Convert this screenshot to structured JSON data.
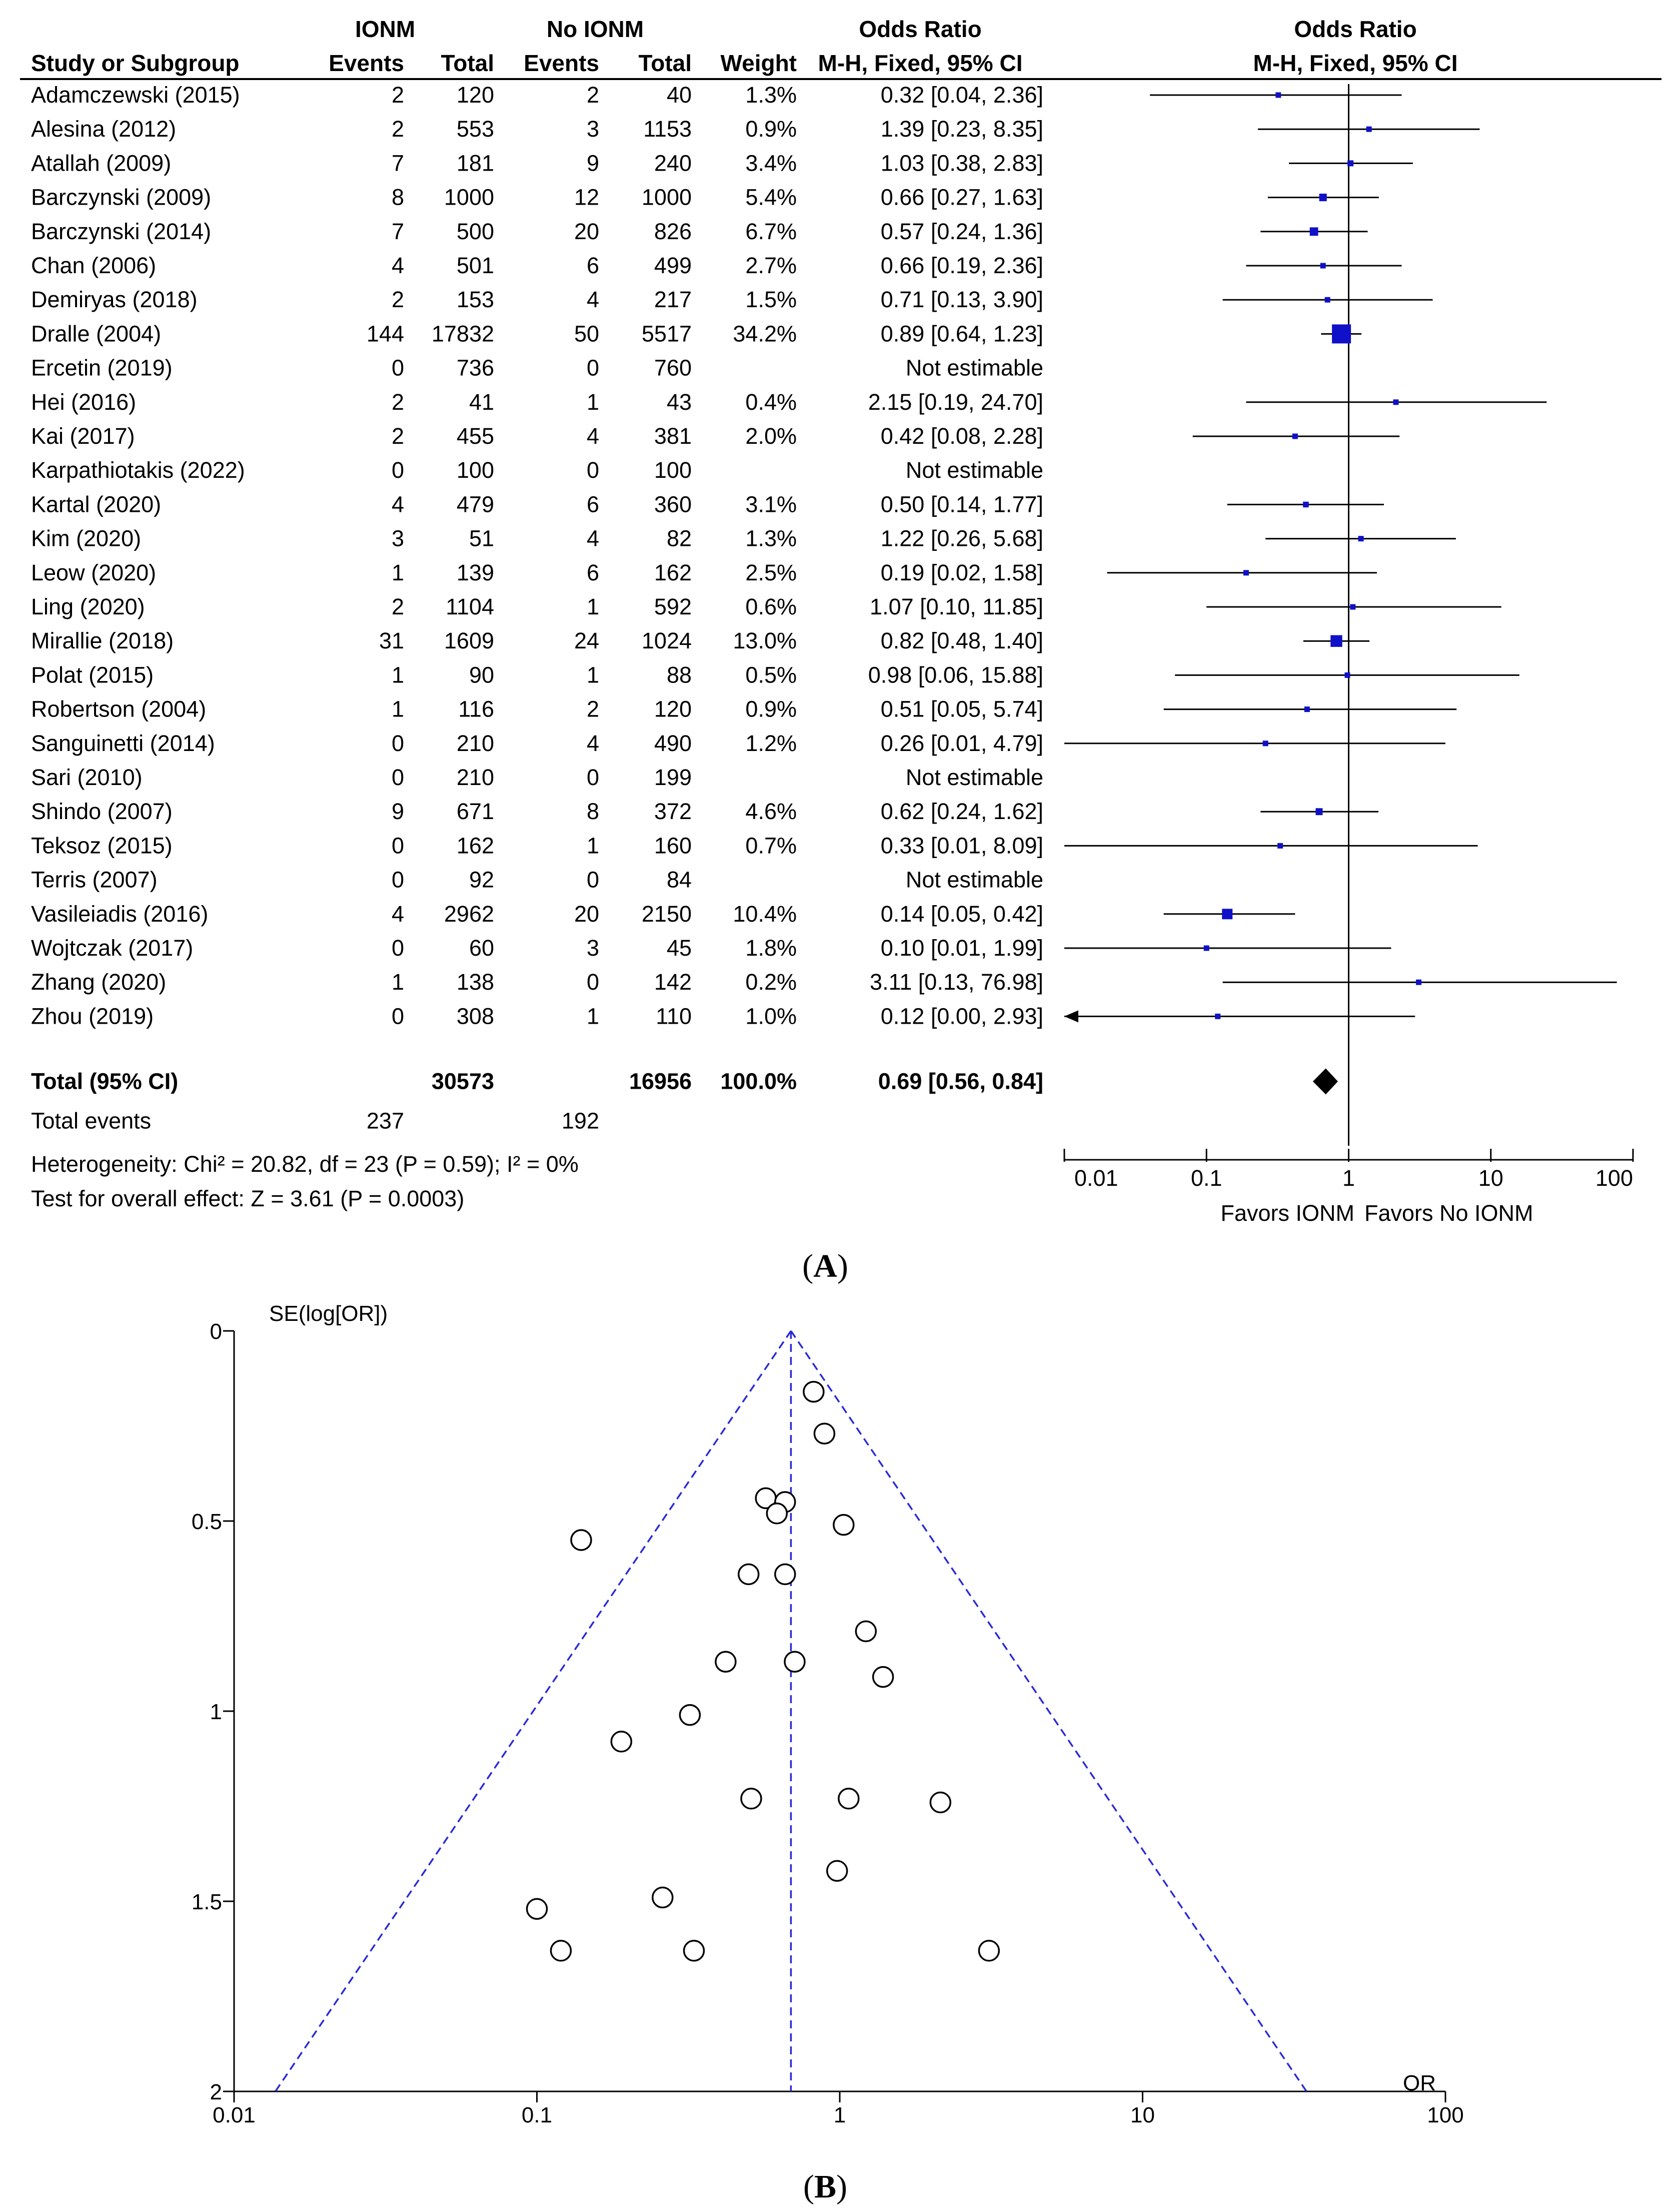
{
  "chart_data": [
    {
      "type": "forest",
      "panel_label": "A",
      "group_headers": {
        "ionm": "IONM",
        "no_ionm": "No IONM",
        "or_text": "Odds Ratio",
        "or_plot": "Odds Ratio"
      },
      "column_headers": {
        "study": "Study or Subgroup",
        "events1": "Events",
        "total1": "Total",
        "events2": "Events",
        "total2": "Total",
        "weight": "Weight",
        "method_text": "M-H, Fixed, 95% CI",
        "method_plot": "M-H, Fixed, 95% CI"
      },
      "studies": [
        {
          "name": "Adamczewski (2015)",
          "e1": "2",
          "t1": "120",
          "e2": "2",
          "t2": "40",
          "weight": "1.3%",
          "ci": "0.32 [0.04, 2.36]",
          "or": 0.32,
          "lo": 0.04,
          "hi": 2.36,
          "w": 1.3
        },
        {
          "name": "Alesina (2012)",
          "e1": "2",
          "t1": "553",
          "e2": "3",
          "t2": "1153",
          "weight": "0.9%",
          "ci": "1.39 [0.23, 8.35]",
          "or": 1.39,
          "lo": 0.23,
          "hi": 8.35,
          "w": 0.9
        },
        {
          "name": "Atallah (2009)",
          "e1": "7",
          "t1": "181",
          "e2": "9",
          "t2": "240",
          "weight": "3.4%",
          "ci": "1.03 [0.38, 2.83]",
          "or": 1.03,
          "lo": 0.38,
          "hi": 2.83,
          "w": 3.4
        },
        {
          "name": "Barczynski (2009)",
          "e1": "8",
          "t1": "1000",
          "e2": "12",
          "t2": "1000",
          "weight": "5.4%",
          "ci": "0.66 [0.27, 1.63]",
          "or": 0.66,
          "lo": 0.27,
          "hi": 1.63,
          "w": 5.4
        },
        {
          "name": "Barczynski (2014)",
          "e1": "7",
          "t1": "500",
          "e2": "20",
          "t2": "826",
          "weight": "6.7%",
          "ci": "0.57 [0.24, 1.36]",
          "or": 0.57,
          "lo": 0.24,
          "hi": 1.36,
          "w": 6.7
        },
        {
          "name": "Chan (2006)",
          "e1": "4",
          "t1": "501",
          "e2": "6",
          "t2": "499",
          "weight": "2.7%",
          "ci": "0.66 [0.19, 2.36]",
          "or": 0.66,
          "lo": 0.19,
          "hi": 2.36,
          "w": 2.7
        },
        {
          "name": "Demiryas (2018)",
          "e1": "2",
          "t1": "153",
          "e2": "4",
          "t2": "217",
          "weight": "1.5%",
          "ci": "0.71 [0.13, 3.90]",
          "or": 0.71,
          "lo": 0.13,
          "hi": 3.9,
          "w": 1.5
        },
        {
          "name": "Dralle (2004)",
          "e1": "144",
          "t1": "17832",
          "e2": "50",
          "t2": "5517",
          "weight": "34.2%",
          "ci": "0.89 [0.64, 1.23]",
          "or": 0.89,
          "lo": 0.64,
          "hi": 1.23,
          "w": 34.2
        },
        {
          "name": "Ercetin (2019)",
          "e1": "0",
          "t1": "736",
          "e2": "0",
          "t2": "760",
          "weight": "",
          "ci": "Not estimable",
          "or": null,
          "lo": null,
          "hi": null,
          "w": 0
        },
        {
          "name": "Hei (2016)",
          "e1": "2",
          "t1": "41",
          "e2": "1",
          "t2": "43",
          "weight": "0.4%",
          "ci": "2.15 [0.19, 24.70]",
          "or": 2.15,
          "lo": 0.19,
          "hi": 24.7,
          "w": 0.4
        },
        {
          "name": "Kai (2017)",
          "e1": "2",
          "t1": "455",
          "e2": "4",
          "t2": "381",
          "weight": "2.0%",
          "ci": "0.42 [0.08, 2.28]",
          "or": 0.42,
          "lo": 0.08,
          "hi": 2.28,
          "w": 2.0
        },
        {
          "name": "Karpathiotakis (2022)",
          "e1": "0",
          "t1": "100",
          "e2": "0",
          "t2": "100",
          "weight": "",
          "ci": "Not estimable",
          "or": null,
          "lo": null,
          "hi": null,
          "w": 0
        },
        {
          "name": "Kartal (2020)",
          "e1": "4",
          "t1": "479",
          "e2": "6",
          "t2": "360",
          "weight": "3.1%",
          "ci": "0.50 [0.14, 1.77]",
          "or": 0.5,
          "lo": 0.14,
          "hi": 1.77,
          "w": 3.1
        },
        {
          "name": "Kim (2020)",
          "e1": "3",
          "t1": "51",
          "e2": "4",
          "t2": "82",
          "weight": "1.3%",
          "ci": "1.22 [0.26, 5.68]",
          "or": 1.22,
          "lo": 0.26,
          "hi": 5.68,
          "w": 1.3
        },
        {
          "name": "Leow (2020)",
          "e1": "1",
          "t1": "139",
          "e2": "6",
          "t2": "162",
          "weight": "2.5%",
          "ci": "0.19 [0.02, 1.58]",
          "or": 0.19,
          "lo": 0.02,
          "hi": 1.58,
          "w": 2.5
        },
        {
          "name": "Ling (2020)",
          "e1": "2",
          "t1": "1104",
          "e2": "1",
          "t2": "592",
          "weight": "0.6%",
          "ci": "1.07 [0.10, 11.85]",
          "or": 1.07,
          "lo": 0.1,
          "hi": 11.85,
          "w": 0.6
        },
        {
          "name": "Mirallie (2018)",
          "e1": "31",
          "t1": "1609",
          "e2": "24",
          "t2": "1024",
          "weight": "13.0%",
          "ci": "0.82 [0.48, 1.40]",
          "or": 0.82,
          "lo": 0.48,
          "hi": 1.4,
          "w": 13.0
        },
        {
          "name": "Polat (2015)",
          "e1": "1",
          "t1": "90",
          "e2": "1",
          "t2": "88",
          "weight": "0.5%",
          "ci": "0.98 [0.06, 15.88]",
          "or": 0.98,
          "lo": 0.06,
          "hi": 15.88,
          "w": 0.5
        },
        {
          "name": "Robertson (2004)",
          "e1": "1",
          "t1": "116",
          "e2": "2",
          "t2": "120",
          "weight": "0.9%",
          "ci": "0.51 [0.05, 5.74]",
          "or": 0.51,
          "lo": 0.05,
          "hi": 5.74,
          "w": 0.9
        },
        {
          "name": "Sanguinetti (2014)",
          "e1": "0",
          "t1": "210",
          "e2": "4",
          "t2": "490",
          "weight": "1.2%",
          "ci": "0.26 [0.01, 4.79]",
          "or": 0.26,
          "lo": 0.01,
          "hi": 4.79,
          "w": 1.2
        },
        {
          "name": "Sari (2010)",
          "e1": "0",
          "t1": "210",
          "e2": "0",
          "t2": "199",
          "weight": "",
          "ci": "Not estimable",
          "or": null,
          "lo": null,
          "hi": null,
          "w": 0
        },
        {
          "name": "Shindo (2007)",
          "e1": "9",
          "t1": "671",
          "e2": "8",
          "t2": "372",
          "weight": "4.6%",
          "ci": "0.62 [0.24, 1.62]",
          "or": 0.62,
          "lo": 0.24,
          "hi": 1.62,
          "w": 4.6
        },
        {
          "name": "Teksoz (2015)",
          "e1": "0",
          "t1": "162",
          "e2": "1",
          "t2": "160",
          "weight": "0.7%",
          "ci": "0.33 [0.01, 8.09]",
          "or": 0.33,
          "lo": 0.01,
          "hi": 8.09,
          "w": 0.7
        },
        {
          "name": "Terris (2007)",
          "e1": "0",
          "t1": "92",
          "e2": "0",
          "t2": "84",
          "weight": "",
          "ci": "Not estimable",
          "or": null,
          "lo": null,
          "hi": null,
          "w": 0
        },
        {
          "name": "Vasileiadis (2016)",
          "e1": "4",
          "t1": "2962",
          "e2": "20",
          "t2": "2150",
          "weight": "10.4%",
          "ci": "0.14 [0.05, 0.42]",
          "or": 0.14,
          "lo": 0.05,
          "hi": 0.42,
          "w": 10.4
        },
        {
          "name": "Wojtczak (2017)",
          "e1": "0",
          "t1": "60",
          "e2": "3",
          "t2": "45",
          "weight": "1.8%",
          "ci": "0.10 [0.01, 1.99]",
          "or": 0.1,
          "lo": 0.01,
          "hi": 1.99,
          "w": 1.8
        },
        {
          "name": "Zhang (2020)",
          "e1": "1",
          "t1": "138",
          "e2": "0",
          "t2": "142",
          "weight": "0.2%",
          "ci": "3.11 [0.13, 76.98]",
          "or": 3.11,
          "lo": 0.13,
          "hi": 76.98,
          "w": 0.2
        },
        {
          "name": "Zhou (2019)",
          "e1": "0",
          "t1": "308",
          "e2": "1",
          "t2": "110",
          "weight": "1.0%",
          "ci": "0.12 [0.00, 2.93]",
          "or": 0.12,
          "lo": 0.0,
          "hi": 2.93,
          "w": 1.0
        }
      ],
      "total": {
        "label": "Total (95% CI)",
        "t1": "30573",
        "t2": "16956",
        "weight": "100.0%",
        "ci": "0.69 [0.56, 0.84]",
        "or": 0.69,
        "lo": 0.56,
        "hi": 0.84
      },
      "total_events": {
        "label": "Total events",
        "e1": "237",
        "e2": "192"
      },
      "heterogeneity": "Heterogeneity: Chi² = 20.82, df = 23 (P = 0.59); I² = 0%",
      "overall_effect": "Test for overall effect: Z = 3.61 (P = 0.0003)",
      "x_scale": "log",
      "x_ticks": [
        0.01,
        0.1,
        1,
        10,
        100
      ],
      "x_tick_labels": [
        "0.01",
        "0.1",
        "1",
        "10",
        "100"
      ],
      "favors_left": "Favors IONM",
      "favors_right": "Favors No IONM"
    },
    {
      "type": "scatter",
      "subtype": "funnel",
      "panel_label": "B",
      "ylabel": "SE(log[OR])",
      "xlabel": "OR",
      "x_scale": "log",
      "xlim": [
        0.01,
        100
      ],
      "ylim": [
        0,
        2
      ],
      "y_reversed": true,
      "x_ticks": [
        0.01,
        0.1,
        1,
        10,
        100
      ],
      "x_tick_labels": [
        "0.01",
        "0.1",
        "1",
        "10",
        "100"
      ],
      "y_ticks": [
        0,
        0.5,
        1,
        1.5,
        2
      ],
      "y_tick_labels": [
        "0",
        "0.5",
        "1",
        "1.5",
        "2"
      ],
      "pooled_or": 0.69,
      "points": [
        {
          "or": 0.82,
          "se": 0.16
        },
        {
          "or": 0.89,
          "se": 0.27
        },
        {
          "or": 0.57,
          "se": 0.44
        },
        {
          "or": 0.66,
          "se": 0.45
        },
        {
          "or": 0.62,
          "se": 0.48
        },
        {
          "or": 1.03,
          "se": 0.51
        },
        {
          "or": 0.14,
          "se": 0.55
        },
        {
          "or": 0.5,
          "se": 0.64
        },
        {
          "or": 0.66,
          "se": 0.64
        },
        {
          "or": 1.22,
          "se": 0.79
        },
        {
          "or": 0.42,
          "se": 0.87
        },
        {
          "or": 0.71,
          "se": 0.87
        },
        {
          "or": 1.39,
          "se": 0.91
        },
        {
          "or": 0.32,
          "se": 1.01
        },
        {
          "or": 0.19,
          "se": 1.08
        },
        {
          "or": 0.51,
          "se": 1.23
        },
        {
          "or": 1.07,
          "se": 1.23
        },
        {
          "or": 2.15,
          "se": 1.24
        },
        {
          "or": 0.98,
          "se": 1.42
        },
        {
          "or": 0.26,
          "se": 1.49
        },
        {
          "or": 0.1,
          "se": 1.52
        },
        {
          "or": 0.12,
          "se": 1.63
        },
        {
          "or": 0.33,
          "se": 1.63
        },
        {
          "or": 3.11,
          "se": 1.63
        }
      ]
    }
  ]
}
